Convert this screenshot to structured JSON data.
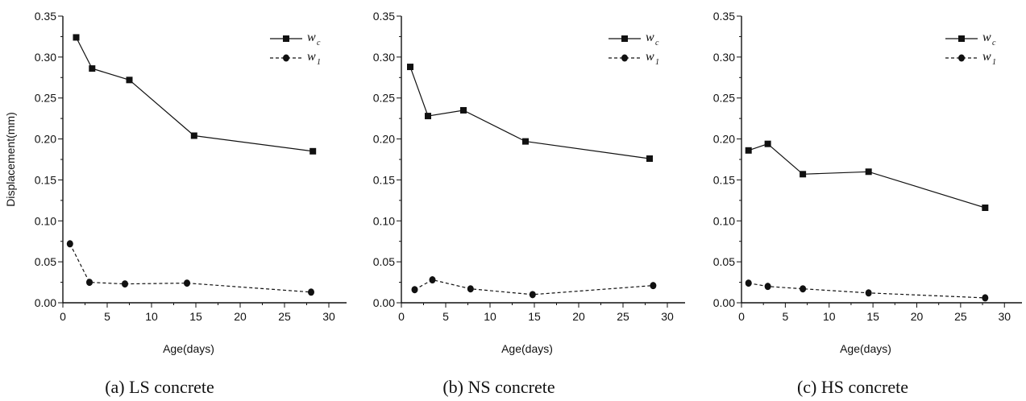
{
  "figure": {
    "captions": [
      "(a) LS concrete",
      "(b) NS concrete",
      "(c) HS concrete"
    ]
  },
  "chart_data": [
    {
      "type": "line",
      "caption": "(a) LS concrete",
      "xlabel": "Age(days)",
      "ylabel": "Displacement(mm)",
      "xlim": [
        0,
        32
      ],
      "ylim": [
        0,
        0.35
      ],
      "xticks": [
        0,
        5,
        10,
        15,
        20,
        25,
        30
      ],
      "yticks": [
        0.0,
        0.05,
        0.1,
        0.15,
        0.2,
        0.25,
        0.3,
        0.35
      ],
      "grid": false,
      "legend_position": "top-right",
      "series": [
        {
          "name": "w",
          "subscript": "c",
          "marker": "square",
          "line": "solid",
          "x": [
            1.5,
            3.3,
            7.5,
            14.8,
            28.2
          ],
          "y": [
            0.324,
            0.286,
            0.272,
            0.204,
            0.185
          ]
        },
        {
          "name": "w",
          "subscript": "1",
          "marker": "circle",
          "line": "dashed",
          "x": [
            0.8,
            3.0,
            7.0,
            14.0,
            28.0
          ],
          "y": [
            0.072,
            0.025,
            0.023,
            0.024,
            0.013
          ]
        }
      ]
    },
    {
      "type": "line",
      "caption": "(b) NS concrete",
      "xlabel": "Age(days)",
      "ylabel": "",
      "xlim": [
        0,
        32
      ],
      "ylim": [
        0,
        0.35
      ],
      "xticks": [
        0,
        5,
        10,
        15,
        20,
        25,
        30
      ],
      "yticks": [
        0.0,
        0.05,
        0.1,
        0.15,
        0.2,
        0.25,
        0.3,
        0.35
      ],
      "grid": false,
      "legend_position": "top-right",
      "series": [
        {
          "name": "w",
          "subscript": "c",
          "marker": "square",
          "line": "solid",
          "x": [
            1.0,
            3.0,
            7.0,
            14.0,
            28.0
          ],
          "y": [
            0.288,
            0.228,
            0.235,
            0.197,
            0.176
          ]
        },
        {
          "name": "w",
          "subscript": "1",
          "marker": "circle",
          "line": "dashed",
          "x": [
            1.5,
            3.5,
            7.8,
            14.8,
            28.4
          ],
          "y": [
            0.016,
            0.028,
            0.017,
            0.01,
            0.021
          ]
        }
      ]
    },
    {
      "type": "line",
      "caption": "(c) HS concrete",
      "xlabel": "Age(days)",
      "ylabel": "",
      "xlim": [
        0,
        32
      ],
      "ylim": [
        0,
        0.35
      ],
      "xticks": [
        0,
        5,
        10,
        15,
        20,
        25,
        30
      ],
      "yticks": [
        0.0,
        0.05,
        0.1,
        0.15,
        0.2,
        0.25,
        0.3,
        0.35
      ],
      "grid": false,
      "legend_position": "top-right",
      "series": [
        {
          "name": "w",
          "subscript": "c",
          "marker": "square",
          "line": "solid",
          "x": [
            0.8,
            3.0,
            7.0,
            14.5,
            27.8
          ],
          "y": [
            0.186,
            0.194,
            0.157,
            0.16,
            0.116
          ]
        },
        {
          "name": "w",
          "subscript": "1",
          "marker": "circle",
          "line": "dashed",
          "x": [
            0.8,
            3.0,
            7.0,
            14.5,
            27.8
          ],
          "y": [
            0.024,
            0.02,
            0.017,
            0.012,
            0.006
          ]
        }
      ]
    }
  ]
}
